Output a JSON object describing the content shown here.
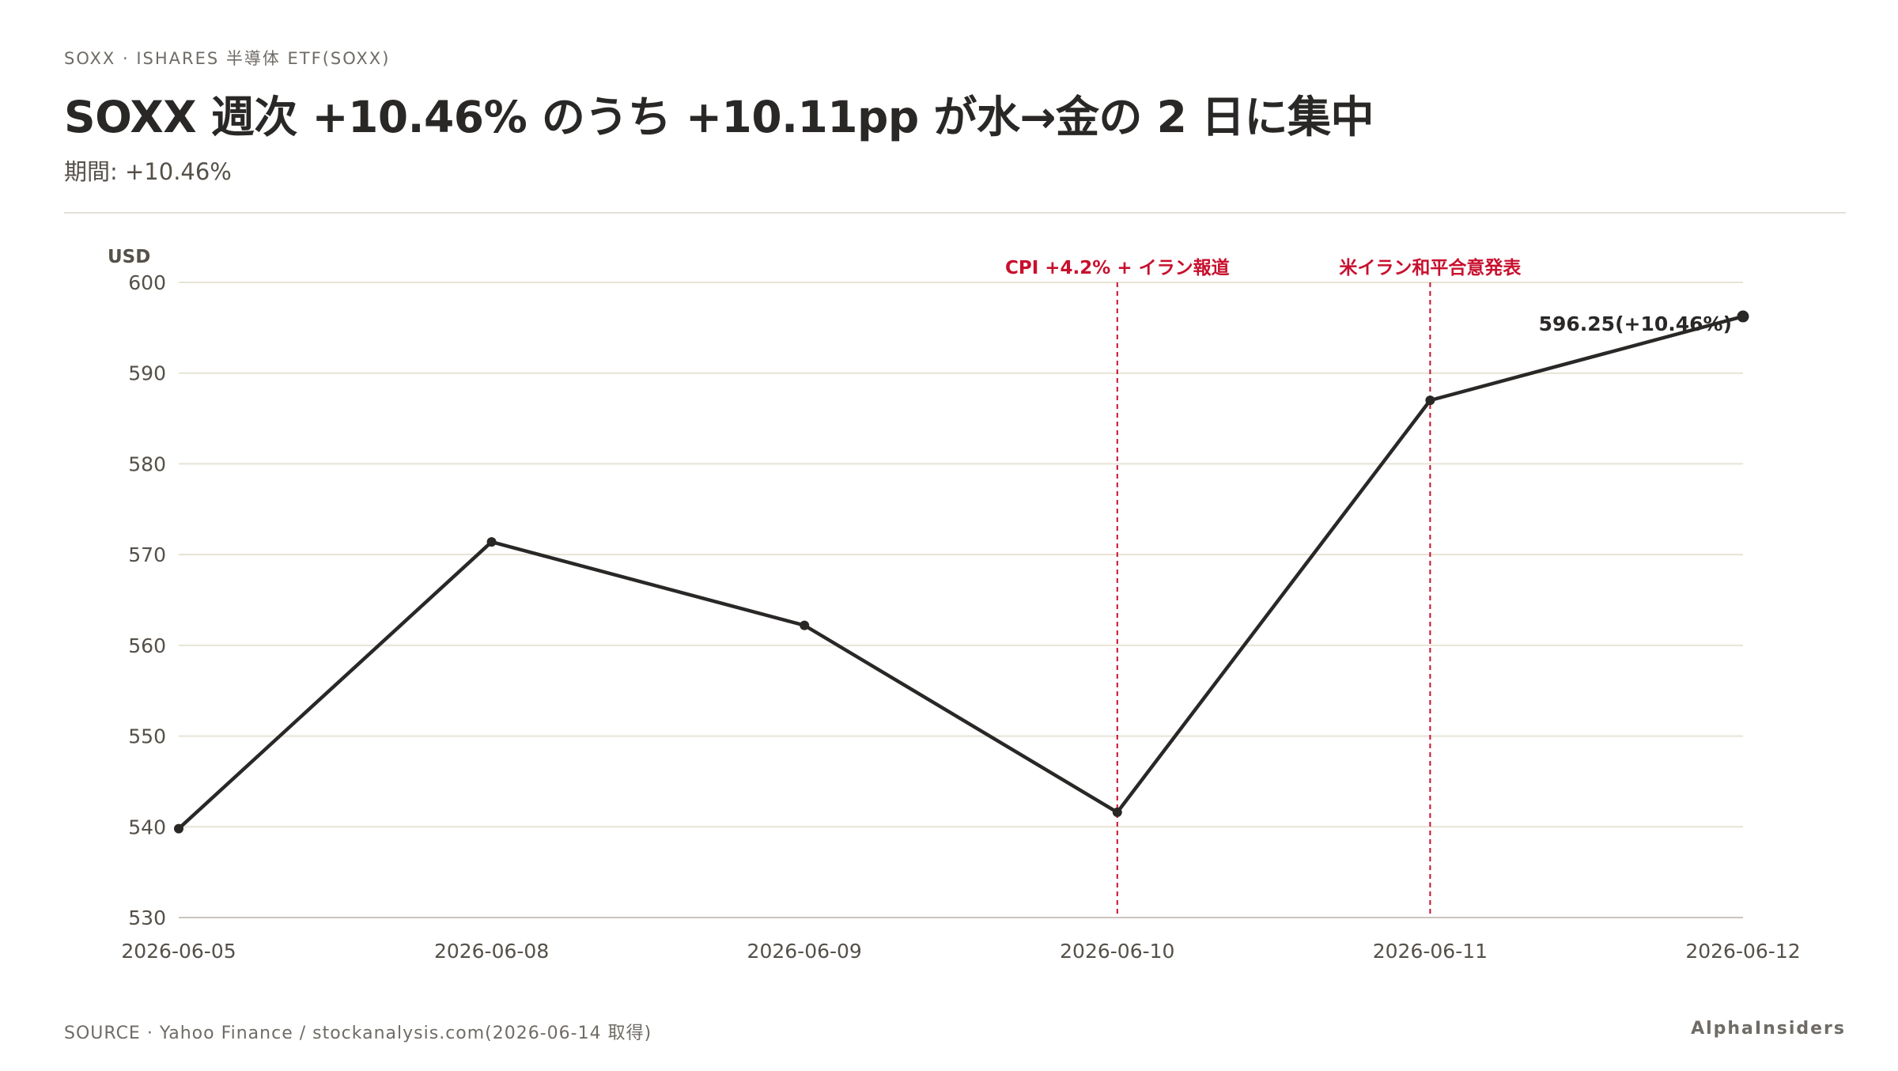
{
  "header": {
    "kicker": "SOXX · ISHARES 半導体 ETF(SOXX)",
    "title": "SOXX 週次 +10.46% のうち +10.11pp が水→金の 2 日に集中",
    "subtitle": "期間: +10.46%"
  },
  "footer": {
    "source": "SOURCE · Yahoo Finance / stockanalysis.com(2026-06-14 取得)",
    "brand": "AlphaInsiders"
  },
  "colors": {
    "line": "#2a2826",
    "grid": "#e6e3d6",
    "annotation": "#c8102e",
    "tick_text": "#555049"
  },
  "chart_data": {
    "type": "line",
    "ylabel": "USD",
    "ylim": [
      530,
      600
    ],
    "yticks": [
      530,
      540,
      550,
      560,
      570,
      580,
      590,
      600
    ],
    "categories": [
      "2026-06-05",
      "2026-06-08",
      "2026-06-09",
      "2026-06-10",
      "2026-06-11",
      "2026-06-12"
    ],
    "series": [
      {
        "values": [
          539.8,
          571.4,
          562.2,
          541.6,
          587.0,
          596.25
        ]
      }
    ],
    "grid": true,
    "end_label": "596.25(+10.46%)",
    "annotations": [
      {
        "x": "2026-06-10",
        "label": "CPI +4.2% + イラン報道"
      },
      {
        "x": "2026-06-11",
        "label": "米イラン和平合意発表"
      }
    ]
  }
}
